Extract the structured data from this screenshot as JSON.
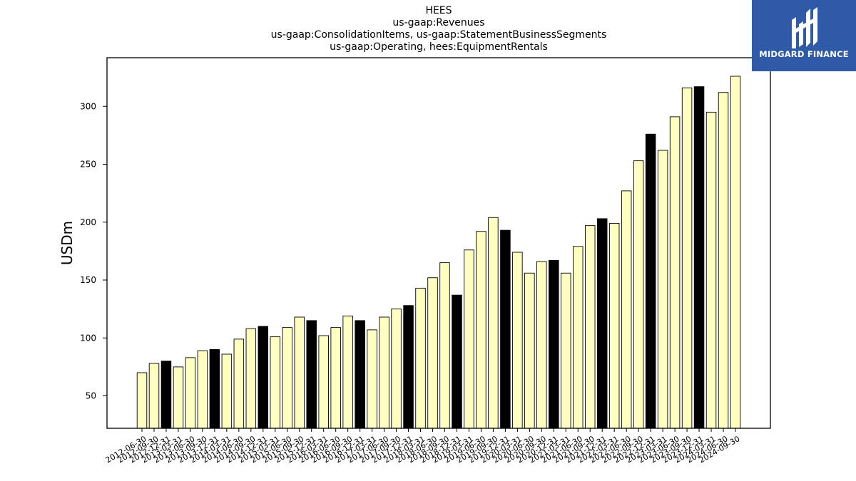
{
  "title_lines": [
    "HEES",
    "us-gaap:Revenues",
    "us-gaap:ConsolidationItems, us-gaap:StatementBusinessSegments",
    "us-gaap:Operating, hees:EquipmentRentals"
  ],
  "logo": {
    "text": "MIDGARD FINANCE",
    "bg_color": "#2e5aa8"
  },
  "chart_data": {
    "type": "bar",
    "title": "HEES",
    "ylabel": "USDm",
    "xlabel": "",
    "ylim": [
      22,
      342
    ],
    "yticks": [
      50,
      100,
      150,
      200,
      250,
      300
    ],
    "grid": false,
    "colors": {
      "normal": "#ffffc0",
      "highlight": "#000000",
      "edge": "#000000"
    },
    "categories": [
      "2012-06-30",
      "2012-09-30",
      "2012-12-31",
      "2013-03-31",
      "2013-06-30",
      "2013-09-30",
      "2013-12-31",
      "2014-03-31",
      "2014-06-30",
      "2014-09-30",
      "2014-12-31",
      "2015-03-31",
      "2015-06-30",
      "2015-09-30",
      "2015-12-31",
      "2016-03-31",
      "2016-06-30",
      "2016-09-30",
      "2016-12-31",
      "2017-03-31",
      "2017-06-30",
      "2017-09-30",
      "2017-12-31",
      "2018-03-31",
      "2018-06-30",
      "2018-09-30",
      "2018-12-31",
      "2019-03-31",
      "2019-06-30",
      "2019-09-30",
      "2019-12-31",
      "2020-03-31",
      "2020-06-30",
      "2020-09-30",
      "2020-12-31",
      "2021-03-31",
      "2021-06-30",
      "2021-09-30",
      "2021-12-31",
      "2022-03-31",
      "2022-06-30",
      "2022-09-30",
      "2022-12-31",
      "2023-03-31",
      "2023-06-30",
      "2023-09-30",
      "2023-12-31",
      "2024-03-31",
      "2024-06-30",
      "2024-09-30"
    ],
    "values": [
      70,
      78,
      80,
      75,
      83,
      89,
      90,
      86,
      99,
      108,
      110,
      101,
      109,
      118,
      115,
      102,
      109,
      119,
      115,
      107,
      118,
      125,
      128,
      143,
      152,
      165,
      137,
      176,
      192,
      204,
      193,
      174,
      156,
      166,
      167,
      156,
      179,
      197,
      203,
      199,
      227,
      253,
      276,
      262,
      291,
      316,
      317,
      295,
      312,
      326
    ],
    "highlight": [
      false,
      false,
      true,
      false,
      false,
      false,
      true,
      false,
      false,
      false,
      true,
      false,
      false,
      false,
      true,
      false,
      false,
      false,
      true,
      false,
      false,
      false,
      true,
      false,
      false,
      false,
      true,
      false,
      false,
      false,
      true,
      false,
      false,
      false,
      true,
      false,
      false,
      false,
      true,
      false,
      false,
      false,
      true,
      false,
      false,
      false,
      true,
      false,
      false,
      false
    ]
  }
}
